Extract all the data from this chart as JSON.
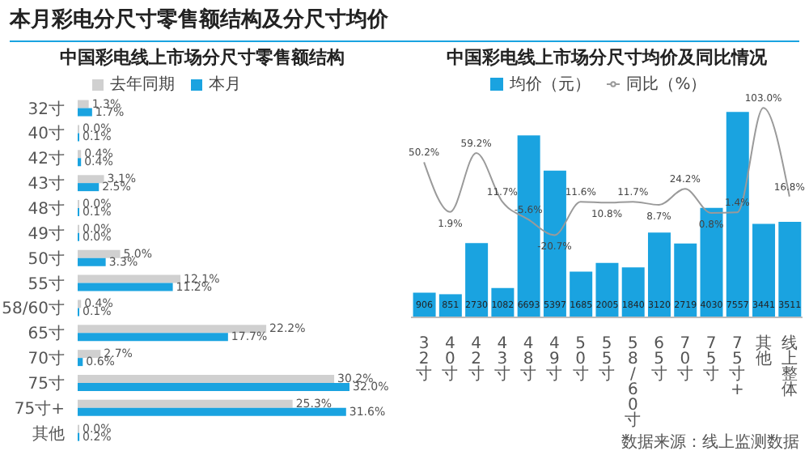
{
  "chart_data": [
    {
      "type": "other",
      "title": "本月彩电分尺寸零售额结构及分尺寸均价"
    },
    {
      "type": "bar",
      "orientation": "horizontal",
      "title": "中国彩电线上市场分尺寸零售额结构",
      "legend": "top",
      "tick_labels": "y",
      "categories": [
        "32寸",
        "40寸",
        "42寸",
        "43寸",
        "48寸",
        "49寸",
        "50寸",
        "55寸",
        "58/60寸",
        "65寸",
        "70寸",
        "75寸",
        "75寸+",
        "其他"
      ],
      "series": [
        {
          "name": "去年同期",
          "color": "#d0d0d0",
          "values": [
            1.3,
            0.0,
            0.4,
            3.1,
            0.0,
            0.0,
            5.0,
            12.1,
            0.4,
            22.2,
            2.7,
            30.2,
            25.3,
            0.0
          ],
          "value_labels": [
            "1.3%",
            "0.0%",
            "0.4%",
            "3.1%",
            "0.0%",
            "0.0%",
            "5.0%",
            "12.1%",
            "0.4%",
            "22.2%",
            "2.7%",
            "30.2%",
            "25.3%",
            "0.0%"
          ]
        },
        {
          "name": "本月",
          "color": "#1aa3e0",
          "values": [
            1.7,
            0.1,
            0.4,
            2.5,
            0.1,
            0.0,
            3.3,
            11.2,
            0.1,
            17.7,
            0.6,
            32.0,
            31.6,
            0.2
          ],
          "value_labels": [
            "1.7%",
            "0.1%",
            "0.4%",
            "2.5%",
            "0.1%",
            "0.0%",
            "3.3%",
            "11.2%",
            "0.1%",
            "17.7%",
            "0.6%",
            "32.0%",
            "31.6%",
            "0.2%"
          ]
        }
      ]
    },
    {
      "type": "bar",
      "title": "中国彩电线上市场分尺寸均价及同比情况",
      "legend": "top",
      "tick_labels": "x",
      "categories": [
        "32寸",
        "40寸",
        "42寸",
        "43寸",
        "48寸",
        "49寸",
        "50寸",
        "55寸",
        "58/60寸",
        "65寸",
        "70寸",
        "75寸",
        "75寸+",
        "其他",
        "线上整体"
      ],
      "series": [
        {
          "name": "均价（元）",
          "type": "bar",
          "color": "#1aa3e0",
          "values": [
            906,
            851,
            2730,
            1082,
            6693,
            5397,
            1685,
            2005,
            1840,
            3120,
            2719,
            4030,
            7557,
            3441,
            3511
          ],
          "value_labels": [
            "906",
            "851",
            "2730",
            "1082",
            "6693",
            "5397",
            "1685",
            "2005",
            "1840",
            "3120",
            "2719",
            "4030",
            "7557",
            "3441",
            "3511"
          ]
        },
        {
          "name": "同比（%）",
          "type": "line",
          "axis": "y2",
          "color": "#9a9a9a",
          "values": [
            50.2,
            1.9,
            59.2,
            11.7,
            -5.6,
            -20.7,
            11.6,
            10.8,
            11.7,
            8.7,
            24.2,
            0.8,
            1.4,
            103.0,
            16.8
          ],
          "value_labels": [
            "50.2%",
            "1.9%",
            "59.2%",
            "11.7%",
            "-5.6%",
            "-20.7%",
            "11.6%",
            "10.8%",
            "11.7%",
            "8.7%",
            "24.2%",
            "0.8%",
            "1.4%",
            "103.0%",
            "16.8%"
          ]
        }
      ],
      "annotations": [
        "数据来源：线上监测数据"
      ]
    }
  ]
}
